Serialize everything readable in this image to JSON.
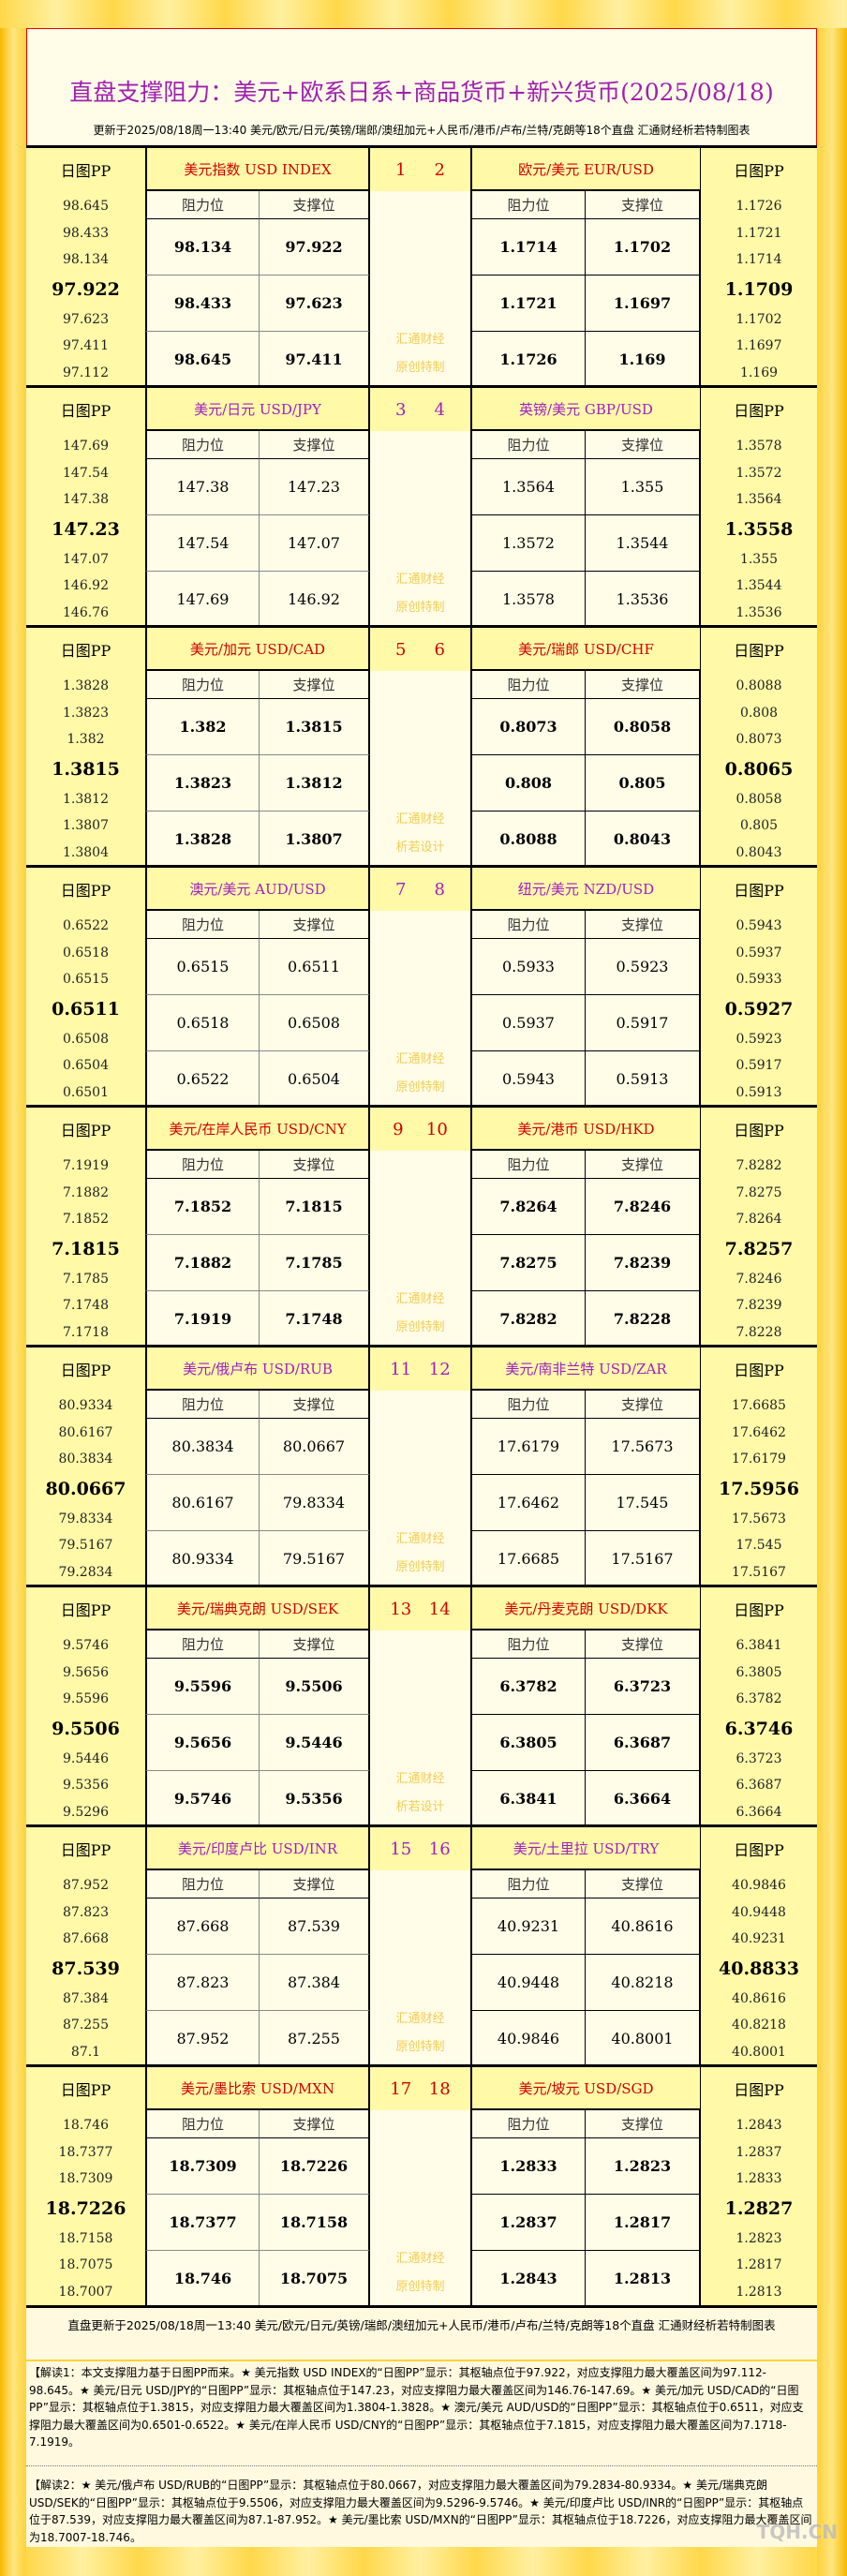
{
  "header": {
    "title": "直盘支撑阻力：美元+欧系日系+商品货币+新兴货币(2025/08/18)",
    "subtitle": "更新于2025/08/18周一13:40 美元/欧元/日元/英镑/瑞郎/澳纽加元+人民币/港币/卢布/兰特/克朗等18个直盘 汇通财经析若特制图表"
  },
  "labels": {
    "pp": "日图PP",
    "resistance": "阻力位",
    "support": "支撑位"
  },
  "colors": {
    "red": "#d00000",
    "purple": "#a020c0"
  },
  "blocks": [
    {
      "color": "red",
      "watermark": [
        "汇通财经",
        "原创特制"
      ],
      "num_left": "1",
      "num_right": "2",
      "left": {
        "title": "美元指数 USD INDEX",
        "pp": [
          "98.645",
          "98.433",
          "98.134",
          "97.922",
          "97.623",
          "97.411",
          "97.112"
        ],
        "rows": [
          [
            "98.134",
            "97.922"
          ],
          [
            "98.433",
            "97.623"
          ],
          [
            "98.645",
            "97.411"
          ]
        ]
      },
      "right": {
        "title": "欧元/美元 EUR/USD",
        "pp": [
          "1.1726",
          "1.1721",
          "1.1714",
          "1.1709",
          "1.1702",
          "1.1697",
          "1.169"
        ],
        "rows": [
          [
            "1.1714",
            "1.1702"
          ],
          [
            "1.1721",
            "1.1697"
          ],
          [
            "1.1726",
            "1.169"
          ]
        ]
      }
    },
    {
      "color": "purple",
      "watermark": [
        "汇通财经",
        "原创特制"
      ],
      "num_left": "3",
      "num_right": "4",
      "left": {
        "title": "美元/日元 USD/JPY",
        "pp": [
          "147.69",
          "147.54",
          "147.38",
          "147.23",
          "147.07",
          "146.92",
          "146.76"
        ],
        "rows": [
          [
            "147.38",
            "147.23"
          ],
          [
            "147.54",
            "147.07"
          ],
          [
            "147.69",
            "146.92"
          ]
        ]
      },
      "right": {
        "title": "英镑/美元 GBP/USD",
        "pp": [
          "1.3578",
          "1.3572",
          "1.3564",
          "1.3558",
          "1.355",
          "1.3544",
          "1.3536"
        ],
        "rows": [
          [
            "1.3564",
            "1.355"
          ],
          [
            "1.3572",
            "1.3544"
          ],
          [
            "1.3578",
            "1.3536"
          ]
        ]
      }
    },
    {
      "color": "red",
      "watermark": [
        "汇通财经",
        "析若设计"
      ],
      "num_left": "5",
      "num_right": "6",
      "left": {
        "title": "美元/加元 USD/CAD",
        "pp": [
          "1.3828",
          "1.3823",
          "1.382",
          "1.3815",
          "1.3812",
          "1.3807",
          "1.3804"
        ],
        "rows": [
          [
            "1.382",
            "1.3815"
          ],
          [
            "1.3823",
            "1.3812"
          ],
          [
            "1.3828",
            "1.3807"
          ]
        ]
      },
      "right": {
        "title": "美元/瑞郎 USD/CHF",
        "pp": [
          "0.8088",
          "0.808",
          "0.8073",
          "0.8065",
          "0.8058",
          "0.805",
          "0.8043"
        ],
        "rows": [
          [
            "0.8073",
            "0.8058"
          ],
          [
            "0.808",
            "0.805"
          ],
          [
            "0.8088",
            "0.8043"
          ]
        ]
      }
    },
    {
      "color": "purple",
      "watermark": [
        "汇通财经",
        "原创特制"
      ],
      "num_left": "7",
      "num_right": "8",
      "left": {
        "title": "澳元/美元 AUD/USD",
        "pp": [
          "0.6522",
          "0.6518",
          "0.6515",
          "0.6511",
          "0.6508",
          "0.6504",
          "0.6501"
        ],
        "rows": [
          [
            "0.6515",
            "0.6511"
          ],
          [
            "0.6518",
            "0.6508"
          ],
          [
            "0.6522",
            "0.6504"
          ]
        ]
      },
      "right": {
        "title": "纽元/美元 NZD/USD",
        "pp": [
          "0.5943",
          "0.5937",
          "0.5933",
          "0.5927",
          "0.5923",
          "0.5917",
          "0.5913"
        ],
        "rows": [
          [
            "0.5933",
            "0.5923"
          ],
          [
            "0.5937",
            "0.5917"
          ],
          [
            "0.5943",
            "0.5913"
          ]
        ]
      }
    },
    {
      "color": "red",
      "watermark": [
        "汇通财经",
        "原创特制"
      ],
      "num_left": "9",
      "num_right": "10",
      "left": {
        "title": "美元/在岸人民币 USD/CNY",
        "pp": [
          "7.1919",
          "7.1882",
          "7.1852",
          "7.1815",
          "7.1785",
          "7.1748",
          "7.1718"
        ],
        "rows": [
          [
            "7.1852",
            "7.1815"
          ],
          [
            "7.1882",
            "7.1785"
          ],
          [
            "7.1919",
            "7.1748"
          ]
        ]
      },
      "right": {
        "title": "美元/港币 USD/HKD",
        "pp": [
          "7.8282",
          "7.8275",
          "7.8264",
          "7.8257",
          "7.8246",
          "7.8239",
          "7.8228"
        ],
        "rows": [
          [
            "7.8264",
            "7.8246"
          ],
          [
            "7.8275",
            "7.8239"
          ],
          [
            "7.8282",
            "7.8228"
          ]
        ]
      }
    },
    {
      "color": "purple",
      "watermark": [
        "汇通财经",
        "原创特制"
      ],
      "num_left": "11",
      "num_right": "12",
      "left": {
        "title": "美元/俄卢布 USD/RUB",
        "pp": [
          "80.9334",
          "80.6167",
          "80.3834",
          "80.0667",
          "79.8334",
          "79.5167",
          "79.2834"
        ],
        "rows": [
          [
            "80.3834",
            "80.0667"
          ],
          [
            "80.6167",
            "79.8334"
          ],
          [
            "80.9334",
            "79.5167"
          ]
        ]
      },
      "right": {
        "title": "美元/南非兰特 USD/ZAR",
        "pp": [
          "17.6685",
          "17.6462",
          "17.6179",
          "17.5956",
          "17.5673",
          "17.545",
          "17.5167"
        ],
        "rows": [
          [
            "17.6179",
            "17.5673"
          ],
          [
            "17.6462",
            "17.545"
          ],
          [
            "17.6685",
            "17.5167"
          ]
        ]
      }
    },
    {
      "color": "red",
      "watermark": [
        "汇通财经",
        "析若设计"
      ],
      "num_left": "13",
      "num_right": "14",
      "left": {
        "title": "美元/瑞典克朗 USD/SEK",
        "pp": [
          "9.5746",
          "9.5656",
          "9.5596",
          "9.5506",
          "9.5446",
          "9.5356",
          "9.5296"
        ],
        "rows": [
          [
            "9.5596",
            "9.5506"
          ],
          [
            "9.5656",
            "9.5446"
          ],
          [
            "9.5746",
            "9.5356"
          ]
        ]
      },
      "right": {
        "title": "美元/丹麦克朗 USD/DKK",
        "pp": [
          "6.3841",
          "6.3805",
          "6.3782",
          "6.3746",
          "6.3723",
          "6.3687",
          "6.3664"
        ],
        "rows": [
          [
            "6.3782",
            "6.3723"
          ],
          [
            "6.3805",
            "6.3687"
          ],
          [
            "6.3841",
            "6.3664"
          ]
        ]
      }
    },
    {
      "color": "purple",
      "watermark": [
        "汇通财经",
        "原创特制"
      ],
      "num_left": "15",
      "num_right": "16",
      "left": {
        "title": "美元/印度卢比 USD/INR",
        "pp": [
          "87.952",
          "87.823",
          "87.668",
          "87.539",
          "87.384",
          "87.255",
          "87.1"
        ],
        "rows": [
          [
            "87.668",
            "87.539"
          ],
          [
            "87.823",
            "87.384"
          ],
          [
            "87.952",
            "87.255"
          ]
        ]
      },
      "right": {
        "title": "美元/土里拉 USD/TRY",
        "pp": [
          "40.9846",
          "40.9448",
          "40.9231",
          "40.8833",
          "40.8616",
          "40.8218",
          "40.8001"
        ],
        "rows": [
          [
            "40.9231",
            "40.8616"
          ],
          [
            "40.9448",
            "40.8218"
          ],
          [
            "40.9846",
            "40.8001"
          ]
        ]
      }
    },
    {
      "color": "red",
      "watermark": [
        "汇通财经",
        "原创特制"
      ],
      "num_left": "17",
      "num_right": "18",
      "left": {
        "title": "美元/墨比索 USD/MXN",
        "pp": [
          "18.746",
          "18.7377",
          "18.7309",
          "18.7226",
          "18.7158",
          "18.7075",
          "18.7007"
        ],
        "rows": [
          [
            "18.7309",
            "18.7226"
          ],
          [
            "18.7377",
            "18.7158"
          ],
          [
            "18.746",
            "18.7075"
          ]
        ]
      },
      "right": {
        "title": "美元/坡元 USD/SGD",
        "pp": [
          "1.2843",
          "1.2837",
          "1.2833",
          "1.2827",
          "1.2823",
          "1.2817",
          "1.2813"
        ],
        "rows": [
          [
            "1.2833",
            "1.2823"
          ],
          [
            "1.2837",
            "1.2817"
          ],
          [
            "1.2843",
            "1.2813"
          ]
        ]
      }
    }
  ],
  "footer": {
    "update": "直盘更新于2025/08/18周一13:40 美元/欧元/日元/英镑/瑞郎/澳纽加元+人民币/港币/卢布/兰特/克朗等18个直盘 汇通财经析若特制图表",
    "note1": "【解读1：本文支撑阻力基于日图PP而来。★ 美元指数 USD INDEX的“日图PP”显示：其枢轴点位于97.922，对应支撑阻力最大覆盖区间为97.112-98.645。★ 美元/日元 USD/JPY的“日图PP”显示：其枢轴点位于147.23，对应支撑阻力最大覆盖区间为146.76-147.69。★ 美元/加元 USD/CAD的“日图PP”显示：其枢轴点位于1.3815，对应支撑阻力最大覆盖区间为1.3804-1.3828。★ 澳元/美元 AUD/USD的“日图PP”显示：其枢轴点位于0.6511，对应支撑阻力最大覆盖区间为0.6501-0.6522。★ 美元/在岸人民币 USD/CNY的“日图PP”显示：其枢轴点位于7.1815，对应支撑阻力最大覆盖区间为7.1718-7.1919。",
    "note2": "【解读2：★ 美元/俄卢布 USD/RUB的“日图PP”显示：其枢轴点位于80.0667，对应支撑阻力最大覆盖区间为79.2834-80.9334。★ 美元/瑞典克朗 USD/SEK的“日图PP”显示：其枢轴点位于9.5506，对应支撑阻力最大覆盖区间为9.5296-9.5746。★ 美元/印度卢比 USD/INR的“日图PP”显示：其枢轴点位于87.539，对应支撑阻力最大覆盖区间为87.1-87.952。★ 美元/墨比索 USD/MXN的“日图PP”显示：其枢轴点位于18.7226，对应支撑阻力最大覆盖区间为18.7007-18.746。",
    "watermark": "TQH.CN"
  }
}
